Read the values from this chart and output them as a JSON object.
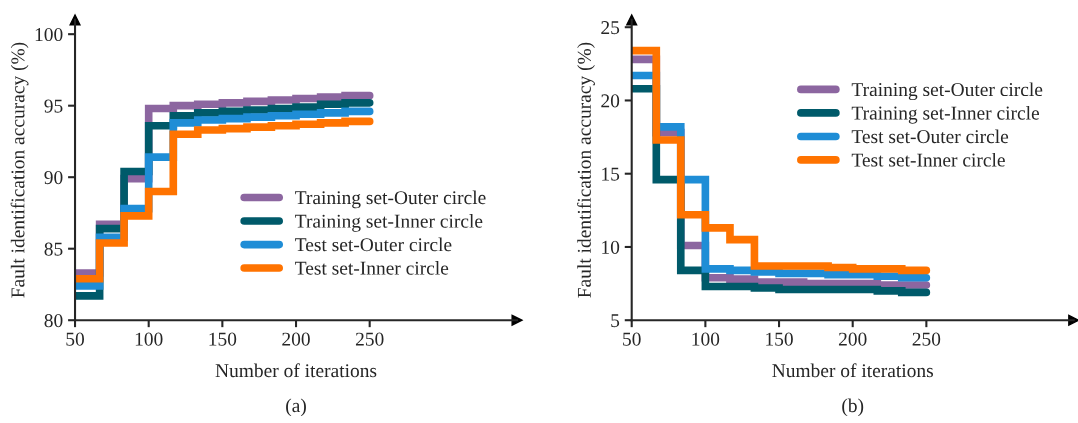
{
  "chart_data": [
    {
      "type": "step",
      "xlabel": "Number of iterations",
      "ylabel": "Fault identification accuracy (%)",
      "annotations": [
        "(a)"
      ],
      "x": [
        50,
        66.7,
        83.3,
        100,
        116.7,
        133.3,
        150,
        166.7,
        183.3,
        200,
        216.7,
        233.3,
        250
      ],
      "series": [
        {
          "name": "Training set-Outer circle",
          "color": "#8c66a0",
          "values": [
            83.3,
            86.7,
            89.9,
            94.8,
            95.0,
            95.1,
            95.2,
            95.3,
            95.4,
            95.5,
            95.6,
            95.7,
            95.7
          ]
        },
        {
          "name": "Training set-Inner circle",
          "color": "#005a6a",
          "values": [
            81.7,
            86.4,
            90.4,
            93.6,
            94.3,
            94.5,
            94.6,
            94.7,
            94.8,
            94.9,
            95.1,
            95.2,
            95.2
          ]
        },
        {
          "name": "Test set-Outer circle",
          "color": "#1f8dd6",
          "values": [
            82.4,
            85.8,
            87.8,
            91.4,
            93.8,
            94.0,
            94.1,
            94.2,
            94.3,
            94.4,
            94.5,
            94.6,
            94.6
          ]
        },
        {
          "name": "Test set-Inner circle",
          "color": "#ff7300",
          "values": [
            82.9,
            85.4,
            87.3,
            89.0,
            93.0,
            93.3,
            93.4,
            93.5,
            93.6,
            93.7,
            93.8,
            93.9,
            93.9
          ]
        }
      ],
      "xlim": [
        50,
        350
      ],
      "xticks": [
        50,
        100,
        150,
        200,
        250
      ],
      "ylim": [
        80,
        101
      ],
      "yticks": [
        80,
        85,
        90,
        95,
        100
      ],
      "grid": false,
      "legend": "lower right"
    },
    {
      "type": "step",
      "xlabel": "Number of iterations",
      "ylabel": "Fault identification accuracy (%)",
      "annotations": [
        "(b)"
      ],
      "x": [
        50,
        66.7,
        83.3,
        100,
        116.7,
        133.3,
        150,
        166.7,
        183.3,
        200,
        216.7,
        233.3,
        250
      ],
      "series": [
        {
          "name": "Training set-Outer circle",
          "color": "#8c66a0",
          "values": [
            22.8,
            17.8,
            10.1,
            7.9,
            7.8,
            7.6,
            7.6,
            7.5,
            7.5,
            7.5,
            7.4,
            7.4,
            7.4
          ]
        },
        {
          "name": "Training set-Inner circle",
          "color": "#005a6a",
          "values": [
            20.8,
            14.6,
            8.4,
            7.3,
            7.3,
            7.2,
            7.1,
            7.1,
            7.1,
            7.1,
            7.0,
            6.9,
            6.9
          ]
        },
        {
          "name": "Test set-Outer circle",
          "color": "#1f8dd6",
          "values": [
            21.7,
            18.2,
            14.6,
            8.5,
            8.4,
            8.3,
            8.2,
            8.2,
            8.1,
            8.1,
            8.0,
            7.9,
            7.9
          ]
        },
        {
          "name": "Test set-Inner circle",
          "color": "#ff7300",
          "values": [
            23.4,
            17.3,
            12.2,
            11.3,
            10.5,
            8.7,
            8.7,
            8.7,
            8.6,
            8.5,
            8.5,
            8.4,
            8.4
          ]
        }
      ],
      "xlim": [
        50,
        350
      ],
      "xticks": [
        50,
        100,
        150,
        200,
        250
      ],
      "ylim": [
        5,
        25.5
      ],
      "yticks": [
        5,
        10,
        15,
        20,
        25
      ],
      "grid": false,
      "legend": "upper right"
    }
  ]
}
